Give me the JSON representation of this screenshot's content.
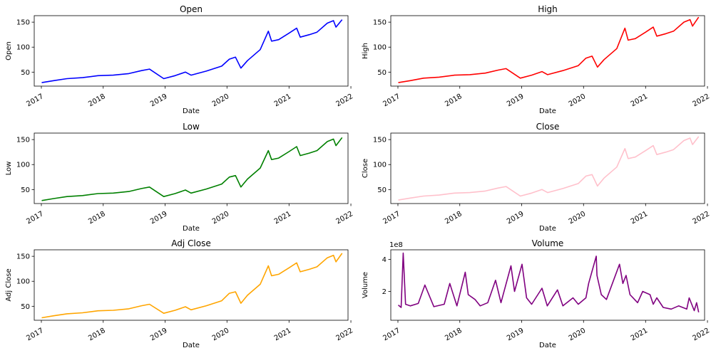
{
  "chart_data": [
    {
      "type": "line",
      "title": "Open",
      "xlabel": "Date",
      "ylabel": "Open",
      "color": "#0000ff",
      "xlim": [
        "2016-11-20",
        "2021-12-15"
      ],
      "ylim": [
        22,
        163
      ],
      "xticks": [
        "2017",
        "2018",
        "2019",
        "2020",
        "2021",
        "2022"
      ],
      "yticks": [
        50,
        100,
        150
      ],
      "x": [
        "2017-01-03",
        "2017-03-15",
        "2017-06-01",
        "2017-09-01",
        "2017-12-01",
        "2018-03-01",
        "2018-06-01",
        "2018-08-15",
        "2018-10-01",
        "2018-12-24",
        "2019-03-01",
        "2019-05-01",
        "2019-06-03",
        "2019-09-01",
        "2019-12-01",
        "2020-01-15",
        "2020-02-20",
        "2020-03-23",
        "2020-05-01",
        "2020-07-15",
        "2020-09-01",
        "2020-09-20",
        "2020-11-01",
        "2021-01-01",
        "2021-02-15",
        "2021-03-08",
        "2021-05-01",
        "2021-06-15",
        "2021-08-15",
        "2021-09-20",
        "2021-10-05",
        "2021-11-10"
      ],
      "y": [
        29,
        33,
        37,
        39,
        43,
        44,
        47,
        53,
        56,
        37,
        43,
        50,
        44,
        52,
        62,
        76,
        80,
        58,
        73,
        95,
        132,
        112,
        115,
        128,
        138,
        120,
        125,
        130,
        148,
        153,
        140,
        155
      ]
    },
    {
      "type": "line",
      "title": "High",
      "xlabel": "Date",
      "ylabel": "High",
      "color": "#ff0000",
      "xlim": [
        "2016-11-20",
        "2021-12-15"
      ],
      "ylim": [
        22,
        163
      ],
      "xticks": [
        "2017",
        "2018",
        "2019",
        "2020",
        "2021",
        "2022"
      ],
      "yticks": [
        50,
        100,
        150
      ],
      "x": [
        "2017-01-03",
        "2017-03-15",
        "2017-06-01",
        "2017-09-01",
        "2017-12-01",
        "2018-03-01",
        "2018-06-01",
        "2018-08-15",
        "2018-10-01",
        "2018-12-24",
        "2019-03-01",
        "2019-05-01",
        "2019-06-03",
        "2019-09-01",
        "2019-12-01",
        "2020-01-15",
        "2020-02-20",
        "2020-03-23",
        "2020-05-01",
        "2020-07-15",
        "2020-09-01",
        "2020-09-20",
        "2020-11-01",
        "2021-01-01",
        "2021-02-15",
        "2021-03-08",
        "2021-05-01",
        "2021-06-15",
        "2021-08-15",
        "2021-09-20",
        "2021-10-05",
        "2021-11-10"
      ],
      "y": [
        29,
        33,
        38,
        40,
        44,
        45,
        48,
        54,
        57,
        38,
        44,
        51,
        45,
        53,
        63,
        78,
        82,
        60,
        75,
        97,
        138,
        114,
        117,
        130,
        140,
        122,
        127,
        132,
        150,
        155,
        142,
        160
      ]
    },
    {
      "type": "line",
      "title": "Low",
      "xlabel": "Date",
      "ylabel": "Low",
      "color": "#008000",
      "xlim": [
        "2016-11-20",
        "2021-12-15"
      ],
      "ylim": [
        22,
        163
      ],
      "xticks": [
        "2017",
        "2018",
        "2019",
        "2020",
        "2021",
        "2022"
      ],
      "yticks": [
        50,
        100,
        150
      ],
      "x": [
        "2017-01-03",
        "2017-03-15",
        "2017-06-01",
        "2017-09-01",
        "2017-12-01",
        "2018-03-01",
        "2018-06-01",
        "2018-08-15",
        "2018-10-01",
        "2018-12-24",
        "2019-03-01",
        "2019-05-01",
        "2019-06-03",
        "2019-09-01",
        "2019-12-01",
        "2020-01-15",
        "2020-02-20",
        "2020-03-23",
        "2020-05-01",
        "2020-07-15",
        "2020-09-01",
        "2020-09-20",
        "2020-11-01",
        "2021-01-01",
        "2021-02-15",
        "2021-03-08",
        "2021-05-01",
        "2021-06-15",
        "2021-08-15",
        "2021-09-20",
        "2021-10-05",
        "2021-11-10"
      ],
      "y": [
        28,
        32,
        36,
        38,
        42,
        43,
        46,
        52,
        55,
        36,
        42,
        49,
        43,
        51,
        61,
        75,
        78,
        55,
        71,
        93,
        128,
        110,
        113,
        126,
        136,
        118,
        123,
        128,
        146,
        151,
        138,
        154
      ]
    },
    {
      "type": "line",
      "title": "Close",
      "xlabel": "Date",
      "ylabel": "Close",
      "color": "#ffc0cb",
      "xlim": [
        "2016-11-20",
        "2021-12-15"
      ],
      "ylim": [
        22,
        163
      ],
      "xticks": [
        "2017",
        "2018",
        "2019",
        "2020",
        "2021",
        "2022"
      ],
      "yticks": [
        50,
        100,
        150
      ],
      "x": [
        "2017-01-03",
        "2017-03-15",
        "2017-06-01",
        "2017-09-01",
        "2017-12-01",
        "2018-03-01",
        "2018-06-01",
        "2018-08-15",
        "2018-10-01",
        "2018-12-24",
        "2019-03-01",
        "2019-05-01",
        "2019-06-03",
        "2019-09-01",
        "2019-12-01",
        "2020-01-15",
        "2020-02-20",
        "2020-03-23",
        "2020-05-01",
        "2020-07-15",
        "2020-09-01",
        "2020-09-20",
        "2020-11-01",
        "2021-01-01",
        "2021-02-15",
        "2021-03-08",
        "2021-05-01",
        "2021-06-15",
        "2021-08-15",
        "2021-09-20",
        "2021-10-05",
        "2021-11-10"
      ],
      "y": [
        29,
        33,
        37,
        39,
        43,
        44,
        47,
        53,
        56,
        37,
        43,
        50,
        44,
        52,
        62,
        77,
        80,
        57,
        73,
        95,
        132,
        112,
        115,
        128,
        138,
        120,
        125,
        130,
        148,
        153,
        140,
        156
      ]
    },
    {
      "type": "line",
      "title": "Adj Close",
      "xlabel": "Date",
      "ylabel": "Adj Close",
      "color": "#ffa500",
      "xlim": [
        "2016-11-20",
        "2021-12-15"
      ],
      "ylim": [
        22,
        163
      ],
      "xticks": [
        "2017",
        "2018",
        "2019",
        "2020",
        "2021",
        "2022"
      ],
      "yticks": [
        50,
        100,
        150
      ],
      "x": [
        "2017-01-03",
        "2017-03-15",
        "2017-06-01",
        "2017-09-01",
        "2017-12-01",
        "2018-03-01",
        "2018-06-01",
        "2018-08-15",
        "2018-10-01",
        "2018-12-24",
        "2019-03-01",
        "2019-05-01",
        "2019-06-03",
        "2019-09-01",
        "2019-12-01",
        "2020-01-15",
        "2020-02-20",
        "2020-03-23",
        "2020-05-01",
        "2020-07-15",
        "2020-09-01",
        "2020-09-20",
        "2020-11-01",
        "2021-01-01",
        "2021-02-15",
        "2021-03-08",
        "2021-05-01",
        "2021-06-15",
        "2021-08-15",
        "2021-09-20",
        "2021-10-05",
        "2021-11-10"
      ],
      "y": [
        27,
        31,
        35,
        37,
        41,
        42,
        45,
        51,
        54,
        36,
        42,
        49,
        43,
        51,
        61,
        76,
        79,
        56,
        72,
        94,
        131,
        111,
        114,
        127,
        137,
        119,
        124,
        129,
        147,
        152,
        139,
        156
      ]
    },
    {
      "type": "line",
      "title": "Volume",
      "xlabel": "Date",
      "ylabel": "Volume",
      "offset_text": "1e8",
      "color": "#800080",
      "xlim": [
        "2016-11-20",
        "2021-12-15"
      ],
      "ylim": [
        20000000,
        460000000
      ],
      "xticks": [
        "2017",
        "2018",
        "2019",
        "2020",
        "2021",
        "2022"
      ],
      "yticks": [
        200000000,
        400000000
      ],
      "ytick_labels": [
        "2",
        "4"
      ],
      "x": [
        "2017-01-03",
        "2017-01-20",
        "2017-02-01",
        "2017-02-15",
        "2017-03-15",
        "2017-05-01",
        "2017-06-09",
        "2017-08-01",
        "2017-10-01",
        "2017-11-03",
        "2017-12-15",
        "2018-02-02",
        "2018-02-20",
        "2018-04-01",
        "2018-05-01",
        "2018-06-15",
        "2018-07-31",
        "2018-09-01",
        "2018-10-30",
        "2018-11-20",
        "2019-01-03",
        "2019-01-30",
        "2019-03-01",
        "2019-05-01",
        "2019-06-01",
        "2019-07-31",
        "2019-09-01",
        "2019-10-31",
        "2019-12-01",
        "2020-01-15",
        "2020-01-31",
        "2020-03-16",
        "2020-03-20",
        "2020-04-15",
        "2020-05-15",
        "2020-07-31",
        "2020-08-20",
        "2020-09-08",
        "2020-10-01",
        "2020-11-15",
        "2020-12-15",
        "2021-01-27",
        "2021-02-15",
        "2021-03-08",
        "2021-04-15",
        "2021-06-01",
        "2021-07-15",
        "2021-09-01",
        "2021-09-15",
        "2021-10-15",
        "2021-10-29",
        "2021-11-10"
      ],
      "y": [
        115000000,
        100000000,
        440000000,
        120000000,
        110000000,
        125000000,
        240000000,
        105000000,
        120000000,
        250000000,
        110000000,
        320000000,
        180000000,
        150000000,
        110000000,
        130000000,
        270000000,
        130000000,
        360000000,
        200000000,
        370000000,
        160000000,
        120000000,
        220000000,
        110000000,
        210000000,
        110000000,
        160000000,
        120000000,
        160000000,
        250000000,
        420000000,
        300000000,
        180000000,
        150000000,
        370000000,
        250000000,
        300000000,
        180000000,
        130000000,
        200000000,
        180000000,
        120000000,
        160000000,
        100000000,
        90000000,
        110000000,
        90000000,
        160000000,
        80000000,
        130000000,
        70000000
      ]
    }
  ]
}
